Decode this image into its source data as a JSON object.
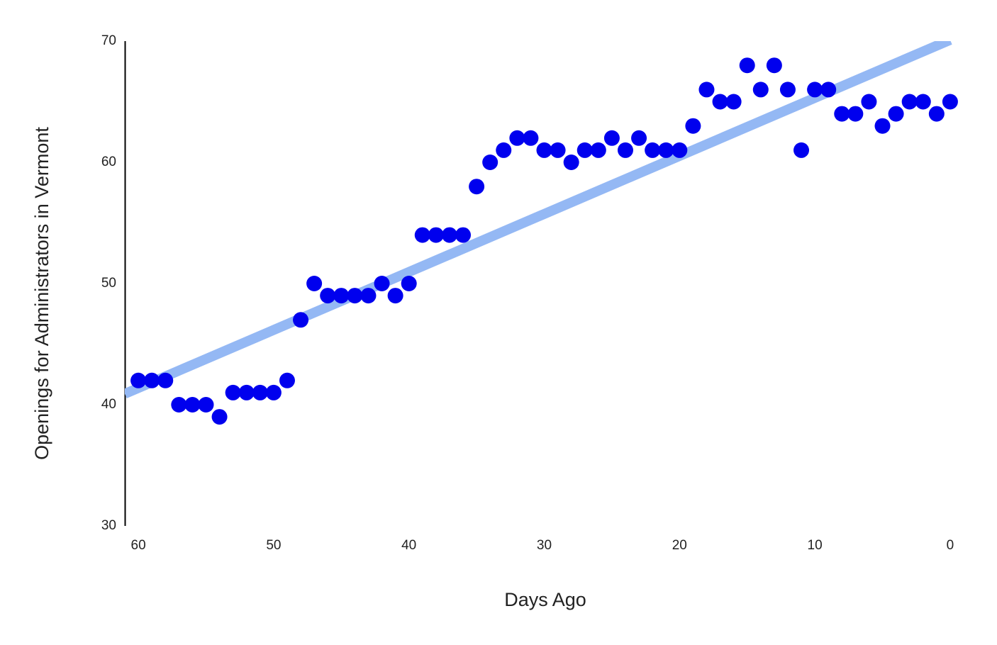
{
  "chart_data": {
    "type": "scatter",
    "x_label": "Days Ago",
    "y_label": "Openings for Administrators in Vermont",
    "xlim": [
      61,
      -1
    ],
    "xticks": [
      60,
      50,
      40,
      30,
      20,
      10,
      0
    ],
    "ylim": [
      30,
      70
    ],
    "yticks": [
      30,
      40,
      50,
      60,
      70
    ],
    "grid": false,
    "series": [
      {
        "color": "#0000ee",
        "x": [
          60,
          59,
          58,
          57,
          56,
          55,
          54,
          53,
          52,
          51,
          50,
          49,
          48,
          47,
          46,
          45,
          44,
          43,
          42,
          41,
          40,
          39,
          38,
          37,
          36,
          35,
          34,
          33,
          32,
          31,
          30,
          29,
          28,
          27,
          26,
          25,
          24,
          23,
          22,
          21,
          20,
          19,
          18,
          17,
          16,
          15,
          14,
          13,
          12,
          11,
          10,
          9,
          8,
          7,
          6,
          5,
          4,
          3,
          2,
          1,
          0
        ],
        "values": [
          42,
          42,
          42,
          40,
          40,
          40,
          39,
          41,
          41,
          41,
          41,
          42,
          47,
          50,
          49,
          49,
          49,
          49,
          50,
          49,
          50,
          54,
          54,
          54,
          54,
          58,
          60,
          61,
          62,
          62,
          61,
          61,
          60,
          61,
          61,
          62,
          61,
          62,
          61,
          61,
          61,
          63,
          66,
          65,
          65,
          68,
          66,
          68,
          66,
          61,
          66,
          66,
          64,
          64,
          65,
          63,
          64,
          65,
          65,
          64,
          65
        ]
      }
    ],
    "trendline": {
      "color": "#94b8f4",
      "x": [
        61,
        0
      ],
      "values": [
        40.9,
        70.1
      ]
    }
  }
}
